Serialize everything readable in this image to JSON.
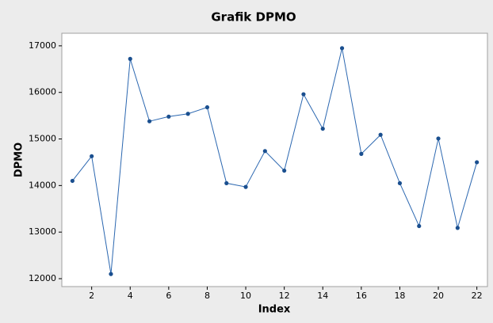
{
  "chart_data": {
    "type": "line",
    "title": "Grafik DPMO",
    "x_label": "Index",
    "y_label": "DPMO",
    "x": [
      1,
      2,
      3,
      4,
      5,
      6,
      7,
      8,
      9,
      10,
      11,
      12,
      13,
      14,
      15,
      16,
      17,
      18,
      19,
      20,
      21,
      22
    ],
    "series": [
      {
        "name": "DPMO",
        "color": "#2b67b0",
        "values": [
          14100,
          14630,
          12100,
          16720,
          15380,
          15480,
          15540,
          15680,
          14050,
          13970,
          14740,
          14320,
          15960,
          15220,
          16950,
          14680,
          15090,
          14050,
          13130,
          15010,
          13090,
          14500
        ]
      }
    ],
    "xlim": [
      0.45,
      22.55
    ],
    "xticks": [
      2,
      4,
      6,
      8,
      10,
      12,
      14,
      16,
      18,
      20,
      22
    ],
    "ylim": [
      11830,
      17270
    ],
    "yticks": [
      12000,
      13000,
      14000,
      15000,
      16000,
      17000
    ],
    "grid": false
  }
}
